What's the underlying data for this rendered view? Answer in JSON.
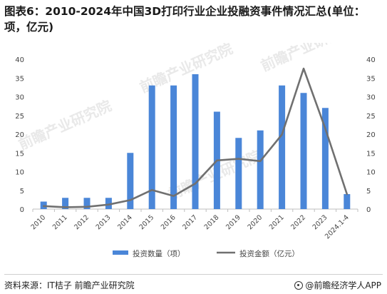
{
  "header": {
    "title": "图表6：2010-2024年中国3D打印行业企业投融资事件情况汇总(单位：项，亿元)"
  },
  "footer": {
    "source": "资料来源：IT桔子 前瞻产业研究院",
    "brand": "@前瞻经济学人APP"
  },
  "watermark": "前瞻产业研究院",
  "colors": {
    "bar": "#4a86d8",
    "line": "#707070",
    "axis": "#bfbfbf"
  },
  "chart_data": {
    "type": "bar",
    "categories": [
      "2010",
      "2011",
      "2012",
      "2013",
      "2014",
      "2015",
      "2016",
      "2017",
      "2018",
      "2019",
      "2020",
      "2021",
      "2022",
      "2023",
      "2024.1-4"
    ],
    "series": [
      {
        "name": "投资数量（项）",
        "type": "bar",
        "axis": "left",
        "values": [
          2,
          3,
          3,
          3,
          15,
          33,
          33,
          36,
          26,
          19,
          21,
          33,
          31,
          27,
          4
        ]
      },
      {
        "name": "投资金额（亿元）",
        "type": "line",
        "axis": "right",
        "values": [
          0.8,
          0.5,
          0.6,
          1.2,
          2.4,
          5.1,
          3.5,
          6.8,
          13.0,
          13.4,
          12.8,
          19.9,
          37.5,
          21.5,
          4.0
        ]
      }
    ],
    "yticks_left": [
      "0",
      "5",
      "10",
      "15",
      "20",
      "25",
      "30",
      "35",
      "40"
    ],
    "yticks_right": [
      "0",
      "5",
      "10",
      "15",
      "20",
      "25",
      "30",
      "35",
      "40"
    ],
    "ylim_left": [
      0,
      40
    ],
    "ylim_right": [
      0,
      40
    ],
    "legend_position": "bottom",
    "grid": false
  }
}
